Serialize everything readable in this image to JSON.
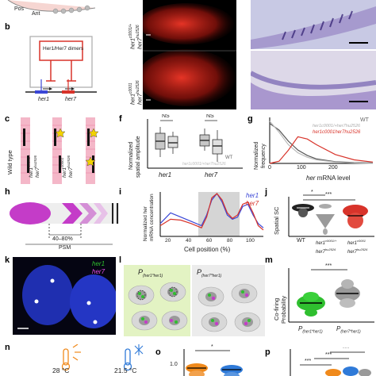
{
  "panel_letters": [
    "b",
    "c",
    "f",
    "g",
    "h",
    "i",
    "j",
    "k",
    "l",
    "m",
    "n",
    "o",
    "p"
  ],
  "panel_a": {
    "pos_label": "Pos",
    "ant_label": "Ant"
  },
  "panel_b": {
    "title": "Her1/Her7 dimers",
    "gene1": "her1",
    "gene2": "her7"
  },
  "panel_b_img": {
    "label_top_line1": "her1",
    "label_top_sup1": "c0001/+",
    "label_top_line2": "her7",
    "label_top_sup2": "hu2526",
    "label_bot_line1": "her1",
    "label_bot_sup1": "c0001",
    "label_bot_line2": "her7",
    "label_bot_sup2": "hu2526"
  },
  "panel_c": {
    "wild_type": "Wild type",
    "geno1_line1": "her1",
    "geno1_sup1": "c0001/+",
    "geno1_line2": "her7",
    "geno1_sup2": "hu2526",
    "geno2_line1": "her1",
    "geno2_sup1": "c0001",
    "geno2_line2": "her7",
    "geno2_sup2": "hu2526"
  },
  "panel_f": {
    "ylabel_line1": "Normalized",
    "ylabel_line2": "spatial amplitude",
    "ns1": "NS",
    "ns2": "NS",
    "x1": "her1",
    "x2": "her7",
    "legend_wt": "WT",
    "legend_mut": "her1c0001/+her7hu2526"
  },
  "panel_g": {
    "ylabel_line1": "Normalized",
    "ylabel_line2": "frequency",
    "xlabel_gene": "her",
    "xlabel_rest": " mRNA level",
    "ticks": [
      "0",
      "100",
      "200"
    ],
    "legend_wt": "WT",
    "legend_het": "her1c0001/+her7hu2526",
    "legend_mut": "her1c0001her7hu2526"
  },
  "panel_h": {
    "psm_pct": "40–80%",
    "psm": "PSM"
  },
  "panel_i": {
    "ylabel_line1": "Normalized her",
    "ylabel_line2": "mRNA concentration",
    "xlabel": "Cell position (%)",
    "xticks": [
      "20",
      "40",
      "60",
      "80",
      "100"
    ],
    "legend1": "her1",
    "legend2": "her7"
  },
  "panel_j": {
    "ylabel": "Spatial SC",
    "sig1": "*",
    "sig2": "***",
    "x1": "WT",
    "x2_line1": "her1",
    "x2_sup1": "c0001/+",
    "x2_line2": "her7",
    "x2_sup2": "hu2526",
    "x3_line1": "her1",
    "x3_sup1": "c0001",
    "x3_line2": "her7",
    "x3_sup2": "hu2526"
  },
  "panel_k": {
    "leg1": "her1",
    "leg2": "her7"
  },
  "panel_l": {
    "left_title_main": "P",
    "left_title_sub": "(her1*her1)",
    "right_title_main": "P",
    "right_title_sub": "(her7*her1)"
  },
  "panel_m": {
    "ylabel_line1": "Co-firing",
    "ylabel_line2": "Probability",
    "sig": "***",
    "x1_main": "P",
    "x1_sub": "(her1*her1)",
    "x2_main": "P",
    "x2_sub": "(her7*her1)"
  },
  "panel_n": {
    "temp1": "28 °C",
    "temp2": "21.5 °C"
  },
  "panel_o": {
    "sig": "*",
    "tick": "1.0"
  },
  "panel_p": {
    "sig1": "***",
    "sig2": "***",
    "sig3": "***"
  },
  "colors": {
    "her1": "#3a46d6",
    "her7": "#d8332a",
    "green": "#2fbf2f",
    "magenta": "#c43cc8",
    "gray": "#9a9a9a",
    "orange": "#f08a1c",
    "blue": "#2f7ad8"
  },
  "chart_data": [
    {
      "type": "box",
      "panel": "f",
      "categories": [
        "her1",
        "her7"
      ],
      "series": [
        {
          "name": "WT",
          "values": [
            1.0,
            1.0
          ]
        },
        {
          "name": "her1c0001/+her7hu2526",
          "values": [
            0.92,
            0.85
          ]
        }
      ],
      "ylabel": "Normalized spatial amplitude",
      "annotations": [
        "NS",
        "NS"
      ]
    },
    {
      "type": "line",
      "panel": "g",
      "xlabel": "her mRNA level",
      "ylabel": "Normalized frequency",
      "x": [
        0,
        20,
        40,
        60,
        80,
        100,
        140,
        180,
        220
      ],
      "series": [
        {
          "name": "WT",
          "values": [
            0.9,
            0.75,
            0.5,
            0.3,
            0.18,
            0.1,
            0.04,
            0.02,
            0.01
          ]
        },
        {
          "name": "her1c0001/+her7hu2526",
          "values": [
            0.95,
            0.7,
            0.42,
            0.24,
            0.14,
            0.08,
            0.03,
            0.01,
            0.0
          ]
        },
        {
          "name": "her1c0001her7hu2526",
          "values": [
            0.0,
            0.05,
            0.3,
            0.6,
            0.55,
            0.42,
            0.2,
            0.08,
            0.03
          ]
        }
      ]
    },
    {
      "type": "line",
      "panel": "i",
      "xlabel": "Cell position (%)",
      "ylabel": "Normalized her mRNA concentration",
      "x": [
        0,
        10,
        20,
        30,
        40,
        45,
        50,
        55,
        60,
        65,
        70,
        75,
        80,
        85,
        90,
        95,
        100
      ],
      "series": [
        {
          "name": "her1",
          "values": [
            0.3,
            0.55,
            0.45,
            0.35,
            0.25,
            0.5,
            0.85,
            1.0,
            0.8,
            0.5,
            0.4,
            0.45,
            0.7,
            0.75,
            0.5,
            0.3,
            0.2
          ]
        },
        {
          "name": "her7",
          "values": [
            0.25,
            0.4,
            0.38,
            0.3,
            0.2,
            0.45,
            0.9,
            1.0,
            0.85,
            0.55,
            0.42,
            0.5,
            0.75,
            0.8,
            0.55,
            0.25,
            0.15
          ]
        }
      ]
    },
    {
      "type": "scatter",
      "panel": "j",
      "categories": [
        "WT",
        "her1c0001/+her7hu2526",
        "her1c0001her7hu2526"
      ],
      "values": [
        0.8,
        0.75,
        0.55
      ],
      "ylabel": "Spatial SC",
      "annotations": [
        "*",
        "***"
      ]
    },
    {
      "type": "scatter",
      "panel": "m",
      "categories": [
        "P(her1*her1)",
        "P(her7*her1)"
      ],
      "values": [
        0.6,
        0.72
      ],
      "ylabel": "Co-firing Probability",
      "annotations": [
        "***"
      ]
    }
  ]
}
